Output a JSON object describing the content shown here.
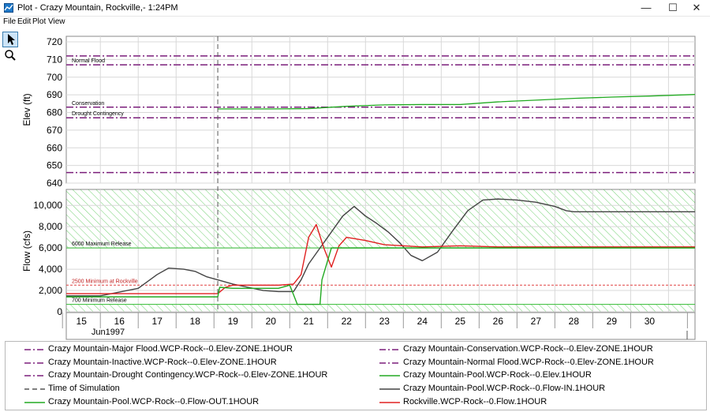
{
  "window": {
    "title": "Plot - Crazy Mountain, Rockville,- 1:24PM",
    "minimize": "—",
    "maximize": "☐",
    "close": "✕"
  },
  "menu": [
    "File",
    "Edit",
    "Plot",
    "View"
  ],
  "tools": [
    {
      "icon": "pointer-icon"
    },
    {
      "icon": "zoom-icon"
    }
  ],
  "chart_data": [
    {
      "type": "line",
      "ylabel": "Elev (ft)",
      "ylim": [
        640,
        720
      ],
      "yticks": [
        "640",
        "650",
        "660",
        "670",
        "680",
        "690",
        "700",
        "710",
        "720"
      ],
      "xlim": [
        14.6,
        31.2
      ],
      "reference_lines": [
        {
          "y": 712,
          "label": "",
          "color": "#7b1f7b"
        },
        {
          "y": 707,
          "label": "Normal Flood",
          "color": "#7b1f7b"
        },
        {
          "y": 683,
          "label": "Conservation",
          "color": "#7b1f7b"
        },
        {
          "y": 677,
          "label": "Drought Contingency",
          "color": "#7b1f7b"
        },
        {
          "y": 646,
          "label": "",
          "color": "#7b1f7b"
        }
      ],
      "series": [
        {
          "name": "Crazy Mountain-Pool.WCP-Rock--0.Elev.1HOUR",
          "color": "#22aa22",
          "x": [
            18.6,
            20,
            21,
            22,
            23,
            24,
            25,
            26,
            27,
            28,
            29,
            30,
            31.2
          ],
          "y": [
            682,
            682,
            682.2,
            683.5,
            684.3,
            684.5,
            684.5,
            686,
            687,
            688,
            688.7,
            689.3,
            690.2
          ]
        }
      ]
    },
    {
      "type": "line",
      "ylabel": "Flow (cfs)",
      "ylim": [
        0,
        11500
      ],
      "yticks": [
        "0",
        "2,000",
        "4,000",
        "6,000",
        "8,000",
        "10,000"
      ],
      "xlim": [
        14.6,
        31.2
      ],
      "xticks": [
        "15",
        "16",
        "17",
        "18",
        "19",
        "20",
        "21",
        "22",
        "23",
        "24",
        "25",
        "26",
        "27",
        "28",
        "29",
        "30"
      ],
      "xsub": "Jun1997",
      "reference_lines": [
        {
          "y": 6000,
          "label": "6000 Maximum Release",
          "color": "#33bb33"
        },
        {
          "y": 2500,
          "label": "2500 Minimum at Rockville",
          "color": "#e04040"
        },
        {
          "y": 700,
          "label": "700 Minimum Release",
          "color": "#33bb33"
        }
      ],
      "time_of_simulation": 18.6,
      "series": [
        {
          "name": "Crazy Mountain-Pool.WCP-Rock--0.Flow-IN.1HOUR",
          "color": "#444444",
          "x": [
            14.6,
            15.5,
            16.5,
            17,
            17.3,
            17.7,
            18,
            18.3,
            18.6,
            19,
            19.4,
            19.8,
            20.2,
            20.6,
            20.8,
            21,
            21.3,
            21.6,
            21.9,
            22.2,
            22.5,
            22.8,
            23.1,
            23.4,
            23.7,
            24,
            24.4,
            24.8,
            25.2,
            25.6,
            26,
            26.5,
            27,
            27.5,
            27.8,
            28,
            29,
            30,
            31.2
          ],
          "y": [
            1500,
            1500,
            2200,
            3500,
            4100,
            4000,
            3800,
            3300,
            3000,
            2600,
            2300,
            2000,
            1900,
            1900,
            3000,
            4500,
            6000,
            7500,
            9000,
            9900,
            9000,
            8300,
            7500,
            6500,
            5300,
            4800,
            5600,
            7600,
            9500,
            10500,
            10600,
            10500,
            10300,
            9900,
            9500,
            9400,
            9400,
            9400,
            9400
          ]
        },
        {
          "name": "Rockville.WCP-Rock--0.Flow.1HOUR",
          "color": "#e02020",
          "x": [
            14.6,
            18.6,
            18.8,
            19,
            19.4,
            19.8,
            20.2,
            20.6,
            20.8,
            21,
            21.2,
            21.4,
            21.6,
            21.8,
            22,
            22.5,
            23,
            23.5,
            24,
            25,
            26,
            27,
            31.2
          ],
          "y": [
            1700,
            1700,
            2300,
            2500,
            2500,
            2500,
            2500,
            2600,
            3500,
            7000,
            8200,
            6000,
            4200,
            6200,
            7000,
            6700,
            6300,
            6200,
            6100,
            6200,
            6100,
            6100,
            6100
          ]
        },
        {
          "name": "Crazy Mountain-Pool.WCP-Rock--0.Flow-OUT.1HOUR",
          "color": "#22aa22",
          "x": [
            14.6,
            18.6,
            18.65,
            19,
            19.4,
            19.8,
            20.2,
            20.5,
            20.7,
            21.3,
            21.35,
            21.6,
            22,
            22.5,
            24,
            26,
            28,
            31.2
          ],
          "y": [
            1400,
            1400,
            2300,
            2200,
            2200,
            2200,
            2200,
            2500,
            700,
            700,
            3000,
            6000,
            6000,
            6000,
            6000,
            6000,
            6000,
            6000
          ]
        }
      ]
    }
  ],
  "legend": [
    {
      "label": "Crazy Mountain-Major Flood.WCP-Rock--0.Elev-ZONE.1HOUR",
      "color": "#7b1f7b",
      "style": "dashdot"
    },
    {
      "label": "Crazy Mountain-Conservation.WCP-Rock--0.Elev-ZONE.1HOUR",
      "color": "#7b1f7b",
      "style": "dashdot"
    },
    {
      "label": "Crazy Mountain-Inactive.WCP-Rock--0.Elev-ZONE.1HOUR",
      "color": "#7b1f7b",
      "style": "dashdot"
    },
    {
      "label": "Crazy Mountain-Normal Flood.WCP-Rock--0.Elev-ZONE.1HOUR",
      "color": "#7b1f7b",
      "style": "dashdot"
    },
    {
      "label": "Crazy Mountain-Drought Contingency.WCP-Rock--0.Elev-ZONE.1HOUR",
      "color": "#7b1f7b",
      "style": "dashdot"
    },
    {
      "label": "Crazy Mountain-Pool.WCP-Rock--0.Elev.1HOUR",
      "color": "#22aa22",
      "style": "solid"
    },
    {
      "label": "Time of Simulation",
      "color": "#555555",
      "style": "dashed"
    },
    {
      "label": "Crazy Mountain-Pool.WCP-Rock--0.Flow-IN.1HOUR",
      "color": "#444444",
      "style": "solid"
    },
    {
      "label": "Crazy Mountain-Pool.WCP-Rock--0.Flow-OUT.1HOUR",
      "color": "#22aa22",
      "style": "solid"
    },
    {
      "label": "Rockville.WCP-Rock--0.Flow.1HOUR",
      "color": "#e02020",
      "style": "solid"
    }
  ]
}
